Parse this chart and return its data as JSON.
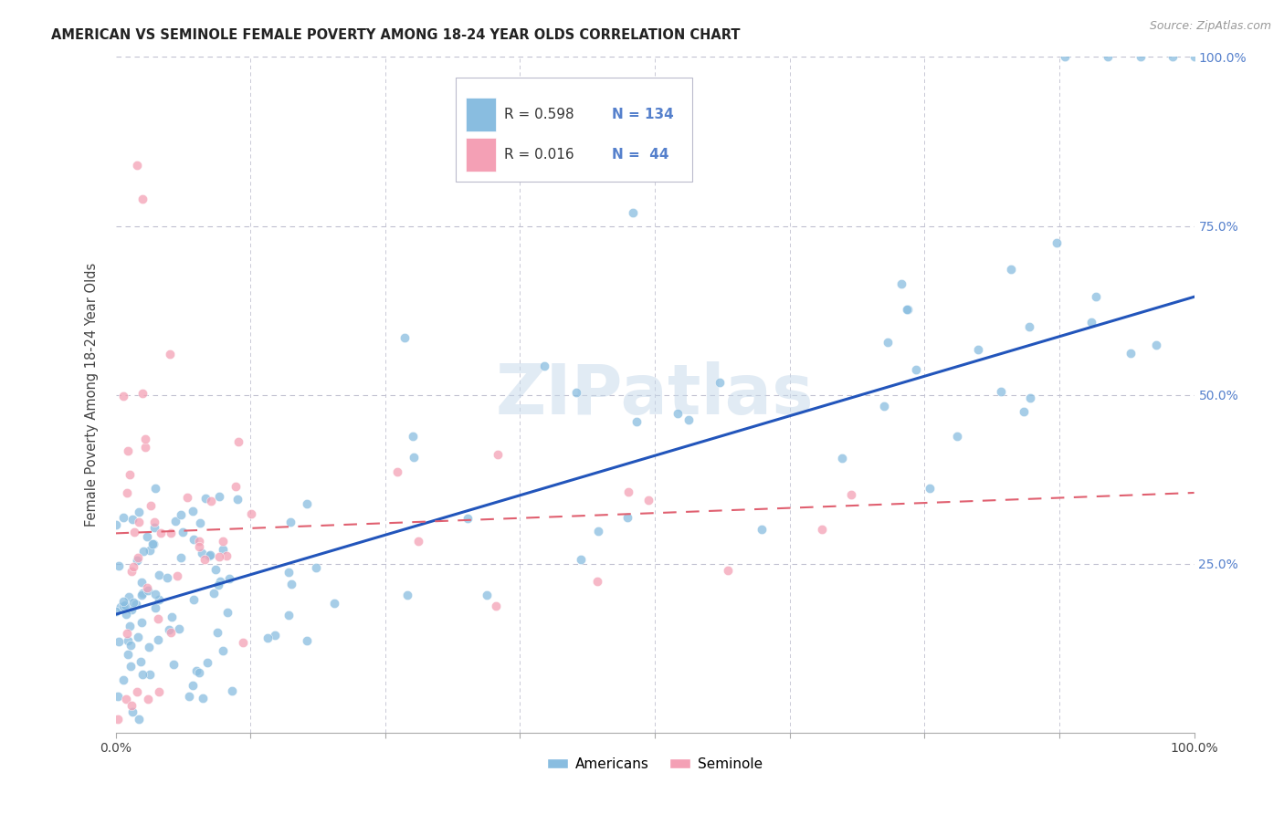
{
  "title": "AMERICAN VS SEMINOLE FEMALE POVERTY AMONG 18-24 YEAR OLDS CORRELATION CHART",
  "source": "Source: ZipAtlas.com",
  "ylabel": "Female Poverty Among 18-24 Year Olds",
  "xlim": [
    0.0,
    1.0
  ],
  "ylim": [
    0.0,
    1.0
  ],
  "americans_color": "#89bde0",
  "seminole_color": "#f4a0b5",
  "trendline_american_color": "#2255bb",
  "trendline_seminole_color": "#e06070",
  "background_color": "#ffffff",
  "grid_color": "#c0c0d0",
  "right_axis_color": "#5580cc",
  "legend_R_american": "0.598",
  "legend_N_american": "134",
  "legend_R_seminole": "0.016",
  "legend_N_seminole": "44",
  "watermark": "ZIPatlas",
  "trendline_am_x0": 0.0,
  "trendline_am_y0": 0.175,
  "trendline_am_x1": 1.0,
  "trendline_am_y1": 0.645,
  "trendline_sem_x0": 0.0,
  "trendline_sem_y0": 0.295,
  "trendline_sem_x1": 1.0,
  "trendline_sem_y1": 0.355,
  "seed": 12345
}
